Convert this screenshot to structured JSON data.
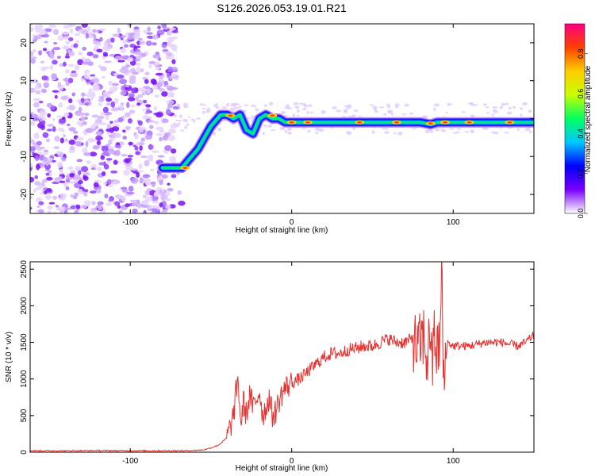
{
  "title": "S126.2026.053.19.01.R21",
  "chart_data": [
    {
      "type": "heatmap",
      "xlabel": "Height of straight line (km)",
      "ylabel": "Frequency (Hz)",
      "xlim": [
        -162,
        150
      ],
      "ylim": [
        -25,
        25
      ],
      "xticks": [
        -100,
        0,
        100
      ],
      "yticks": [
        -20,
        -10,
        0,
        10,
        20
      ],
      "grid": false,
      "noise_region_x": [
        -162,
        -72
      ],
      "ridge": {
        "x": [
          -80,
          -68,
          -58,
          -50,
          -44,
          -40,
          -36,
          -32,
          -28,
          -24,
          -20,
          -16,
          -12,
          -8,
          -4,
          0,
          40,
          80,
          86,
          90,
          150
        ],
        "y": [
          -13,
          -13,
          -8,
          -2,
          1,
          1,
          0,
          1,
          -3,
          -4,
          0,
          1,
          0,
          0,
          -1,
          -1,
          -1,
          -1,
          -1.5,
          -1,
          -1
        ]
      },
      "colorbar": {
        "label": "Normalized spectral amplitude",
        "range": [
          0,
          0.95
        ],
        "ticks": [
          "0.0",
          "0.2",
          "0.4",
          "0.6",
          "0.8"
        ],
        "colors": [
          "#ffffff",
          "#7a00ff",
          "#0000ff",
          "#00c8ff",
          "#00ff60",
          "#c8ff00",
          "#ffcc00",
          "#ff4000",
          "#ff0080"
        ]
      }
    },
    {
      "type": "line",
      "xlabel": "Height of straight line (km)",
      "ylabel": "SNR (10 * v/v)",
      "xlim": [
        -162,
        150
      ],
      "ylim": [
        0,
        2600
      ],
      "xticks": [
        -100,
        0,
        100
      ],
      "yticks": [
        0,
        500,
        1000,
        1500,
        2000,
        2500
      ],
      "grid": false,
      "line_color": "#e8312f",
      "series": [
        {
          "x": [
            -162,
            -140,
            -120,
            -100,
            -80,
            -65,
            -55,
            -50,
            -45,
            -40,
            -38,
            -36,
            -35,
            -34,
            -33,
            -32,
            -31,
            -30,
            -28,
            -26,
            -24,
            -22,
            -20,
            -18,
            -16,
            -14,
            -12,
            -10,
            -8,
            -5,
            0,
            5,
            10,
            15,
            20,
            25,
            30,
            35,
            40,
            45,
            50,
            55,
            60,
            65,
            70,
            75,
            78,
            80,
            82,
            84,
            85,
            86,
            87,
            88,
            90,
            92,
            93,
            94,
            96,
            100,
            110,
            120,
            130,
            140,
            145,
            150
          ],
          "y": [
            20,
            20,
            22,
            20,
            20,
            20,
            30,
            60,
            100,
            200,
            350,
            500,
            700,
            900,
            950,
            500,
            400,
            700,
            500,
            800,
            600,
            700,
            850,
            500,
            600,
            750,
            500,
            550,
            700,
            850,
            950,
            1000,
            1100,
            1200,
            1300,
            1350,
            1350,
            1400,
            1420,
            1450,
            1450,
            1500,
            1550,
            1500,
            1500,
            1550,
            1400,
            1500,
            1600,
            1200,
            1500,
            1800,
            1000,
            1700,
            1300,
            1600,
            2580,
            800,
            1500,
            1450,
            1450,
            1500,
            1500,
            1450,
            1500,
            1600
          ]
        }
      ]
    }
  ]
}
